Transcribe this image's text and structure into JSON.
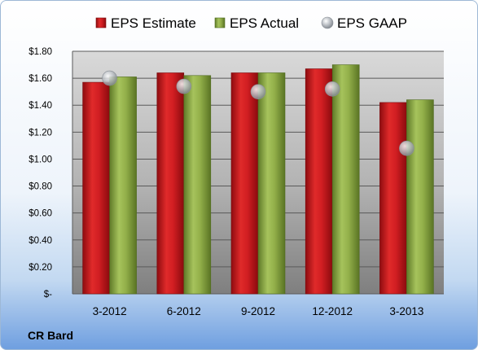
{
  "chart_data": {
    "type": "bar",
    "categories": [
      "3-2012",
      "6-2012",
      "9-2012",
      "12-2012",
      "3-2013"
    ],
    "series": [
      {
        "name": "EPS Estimate",
        "kind": "bar",
        "color": "#c8141a",
        "values": [
          1.57,
          1.64,
          1.64,
          1.67,
          1.42
        ]
      },
      {
        "name": "EPS Actual",
        "kind": "bar",
        "color": "#8aa841",
        "values": [
          1.61,
          1.62,
          1.64,
          1.7,
          1.44
        ]
      },
      {
        "name": "EPS GAAP",
        "kind": "marker",
        "color": "#b8bcc2",
        "values": [
          1.6,
          1.54,
          1.5,
          1.52,
          1.08
        ]
      }
    ],
    "yticks": [
      "$-",
      "$0.20",
      "$0.40",
      "$0.60",
      "$0.80",
      "$1.00",
      "$1.20",
      "$1.40",
      "$1.60",
      "$1.80"
    ],
    "ylim": [
      0,
      1.8
    ],
    "grid": true,
    "legend_position": "top"
  },
  "footer": {
    "company": "CR Bard"
  }
}
